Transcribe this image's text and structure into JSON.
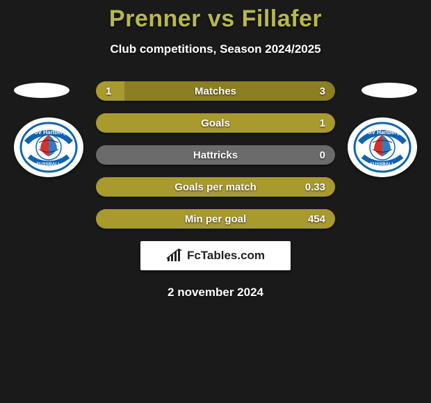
{
  "title": "Prenner vs Fillafer",
  "subtitle": "Club competitions, Season 2024/2025",
  "date": "2 november 2024",
  "branding": "FcTables.com",
  "colors": {
    "title": "#b8b84a",
    "bar_primary": "#a99a2e",
    "bar_primary_dark": "#8c7e22",
    "bar_neutral": "#6b6b6b",
    "background": "#1a1a1a",
    "text": "#ffffff"
  },
  "team_badge": {
    "top_text": "TSV Hartberg",
    "bottom_text": "FUSSBALL",
    "ring_color": "#0f63b0",
    "ball_red": "#d9302c",
    "ball_blue": "#2f7cc4"
  },
  "bars": [
    {
      "label": "Matches",
      "left_value": "1",
      "right_value": "3",
      "left_fill_pct": 12,
      "right_fill_pct": 0,
      "left_color": "#a99a2e",
      "base_color": "#8c7e22"
    },
    {
      "label": "Goals",
      "left_value": "",
      "right_value": "1",
      "left_fill_pct": 0,
      "right_fill_pct": 0,
      "left_color": "#a99a2e",
      "base_color": "#a99a2e"
    },
    {
      "label": "Hattricks",
      "left_value": "",
      "right_value": "0",
      "left_fill_pct": 0,
      "right_fill_pct": 0,
      "left_color": "#6b6b6b",
      "base_color": "#6b6b6b"
    },
    {
      "label": "Goals per match",
      "left_value": "",
      "right_value": "0.33",
      "left_fill_pct": 0,
      "right_fill_pct": 0,
      "left_color": "#a99a2e",
      "base_color": "#a99a2e"
    },
    {
      "label": "Min per goal",
      "left_value": "",
      "right_value": "454",
      "left_fill_pct": 0,
      "right_fill_pct": 0,
      "left_color": "#a99a2e",
      "base_color": "#a99a2e"
    }
  ]
}
